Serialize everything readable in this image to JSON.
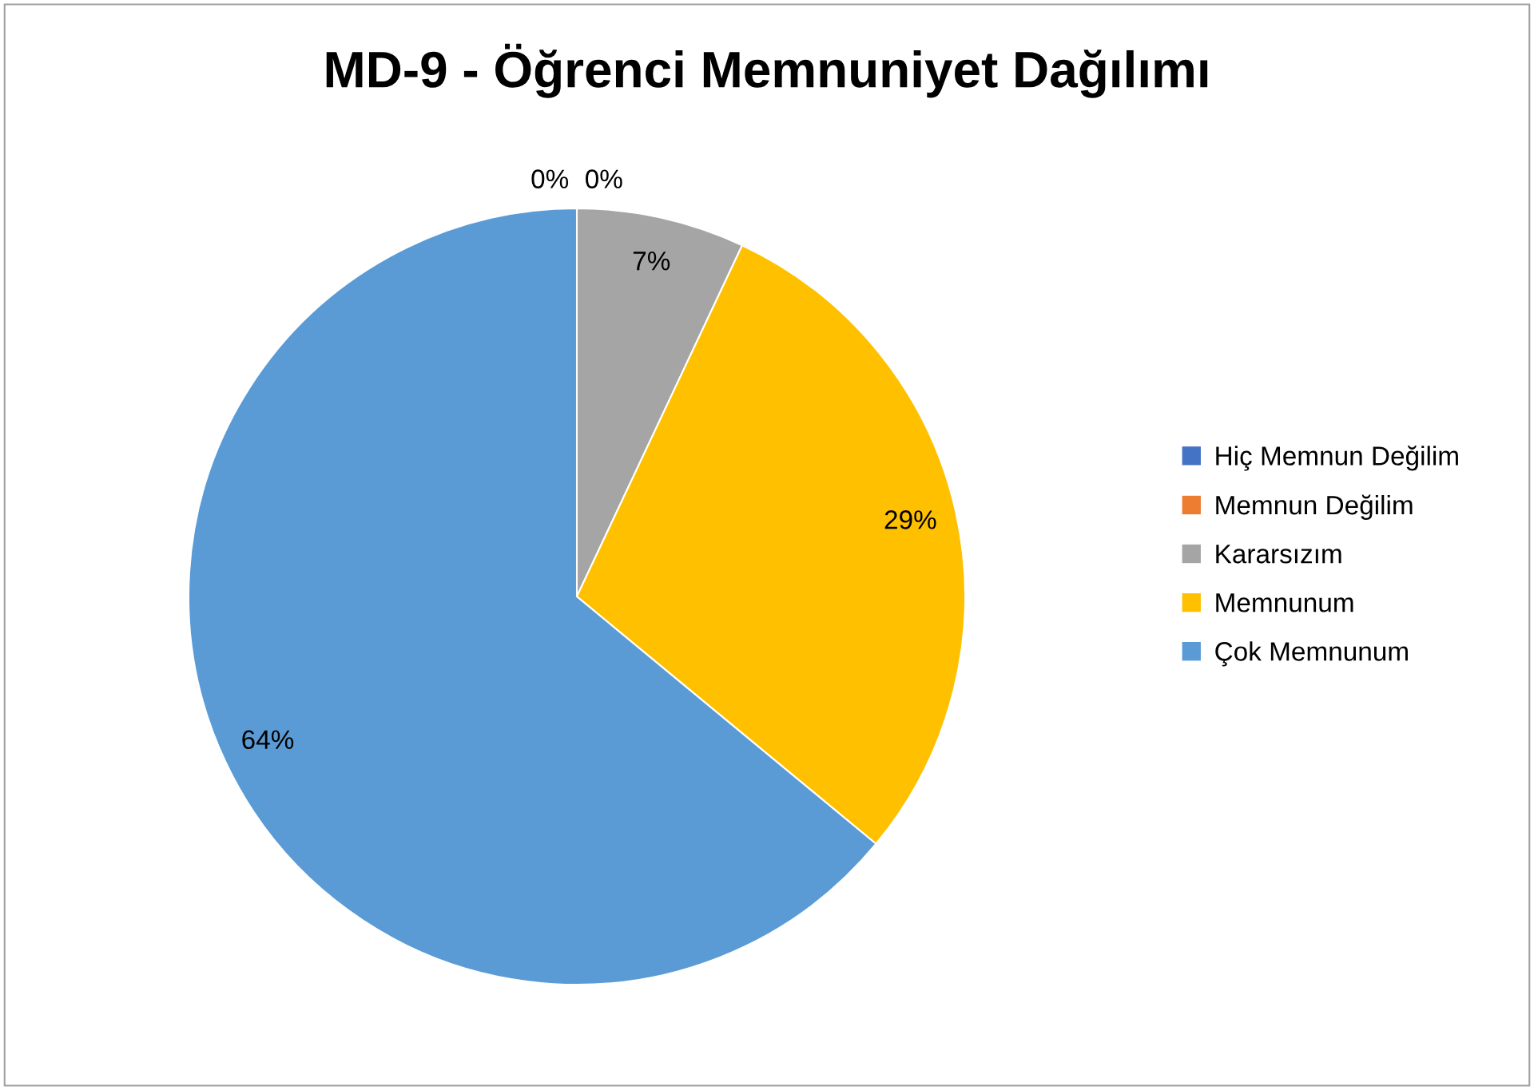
{
  "chart_data": {
    "type": "pie",
    "title": "MD-9 - Öğrenci Memnuniyet Dağılımı",
    "categories": [
      "Hiç Memnun Değilim",
      "Memnun Değilim",
      "Kararsızım",
      "Memnunum",
      "Çok Memnunum"
    ],
    "values": [
      0,
      0,
      7,
      29,
      64
    ],
    "colors": [
      "#4472c4",
      "#ed7d31",
      "#a5a5a5",
      "#ffc000",
      "#5b9bd5"
    ],
    "value_labels": [
      "0%",
      "0%",
      "7%",
      "29%",
      "64%"
    ],
    "legend": "right"
  }
}
